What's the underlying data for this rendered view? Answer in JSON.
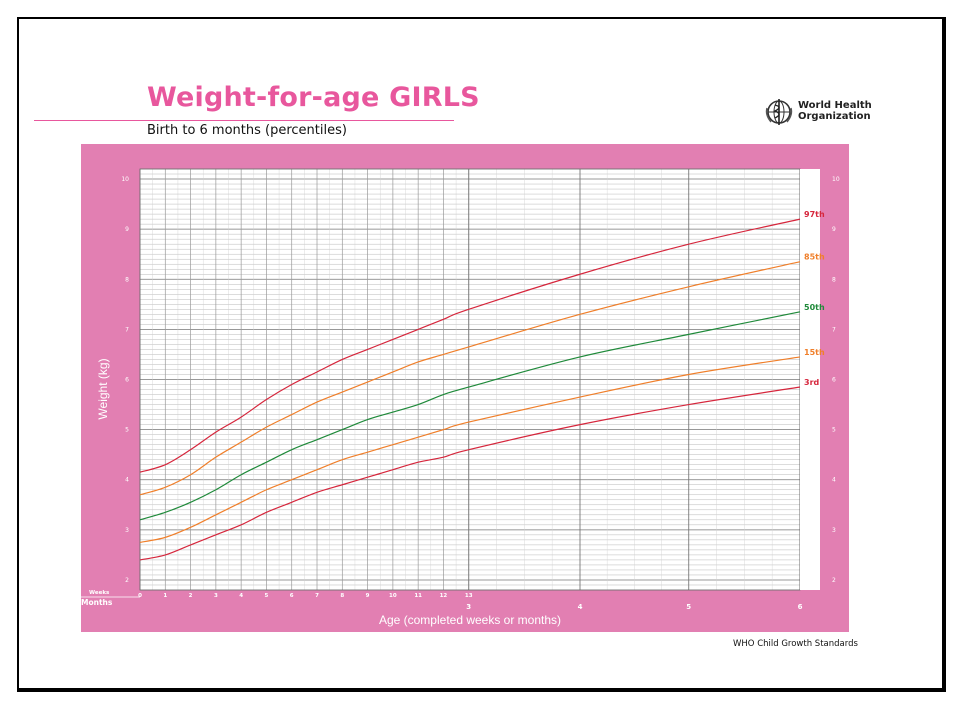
{
  "header": {
    "title": "Weight-for-age GIRLS",
    "subtitle": "Birth to 6 months (percentiles)",
    "org_line1": "World Health",
    "org_line2": "Organization",
    "footer": "WHO Child Growth Standards"
  },
  "colors": {
    "brand_pink": "#e8579d",
    "panel_pink": "#e27fb2",
    "p3": "#d6263c",
    "p15": "#f07f2a",
    "p50": "#1f8a3a",
    "p85": "#f07f2a",
    "p97": "#d6263c"
  },
  "chart_data": {
    "type": "line",
    "title": "Weight-for-age GIRLS",
    "subtitle": "Birth to 6 months (percentiles)",
    "xlabel": "Age (completed weeks or months)",
    "ylabel": "Weight (kg)",
    "ylim": [
      1.8,
      10.2
    ],
    "yticks": [
      2,
      3,
      4,
      5,
      6,
      7,
      8,
      9,
      10
    ],
    "week_ticks": [
      "0",
      "1",
      "2",
      "3",
      "4",
      "5",
      "6",
      "7",
      "8",
      "9",
      "10",
      "11",
      "12",
      "13"
    ],
    "month_ticks": [
      "3",
      "4",
      "5",
      "6"
    ],
    "week_row_label": "Weeks",
    "month_row_label": "Months",
    "grid": true,
    "x_unit": "weeks",
    "x": [
      0,
      1,
      2,
      3,
      4,
      5,
      6,
      7,
      8,
      9,
      10,
      11,
      12,
      13,
      17.4,
      21.7,
      26.1
    ],
    "series": [
      {
        "name": "3rd",
        "color": "#d6263c",
        "values": [
          2.4,
          2.5,
          2.7,
          2.9,
          3.1,
          3.35,
          3.55,
          3.75,
          3.9,
          4.05,
          4.2,
          4.35,
          4.45,
          4.6,
          5.1,
          5.5,
          5.85
        ]
      },
      {
        "name": "15th",
        "color": "#f07f2a",
        "values": [
          2.75,
          2.85,
          3.05,
          3.3,
          3.55,
          3.8,
          4.0,
          4.2,
          4.4,
          4.55,
          4.7,
          4.85,
          5.0,
          5.15,
          5.65,
          6.1,
          6.45
        ]
      },
      {
        "name": "50th",
        "color": "#1f8a3a",
        "values": [
          3.2,
          3.35,
          3.55,
          3.8,
          4.1,
          4.35,
          4.6,
          4.8,
          5.0,
          5.2,
          5.35,
          5.5,
          5.7,
          5.85,
          6.45,
          6.9,
          7.35
        ]
      },
      {
        "name": "85th",
        "color": "#f07f2a",
        "values": [
          3.7,
          3.85,
          4.1,
          4.45,
          4.75,
          5.05,
          5.3,
          5.55,
          5.75,
          5.95,
          6.15,
          6.35,
          6.5,
          6.65,
          7.3,
          7.85,
          8.35
        ]
      },
      {
        "name": "97th",
        "color": "#d6263c",
        "values": [
          4.15,
          4.3,
          4.6,
          4.95,
          5.25,
          5.6,
          5.9,
          6.15,
          6.4,
          6.6,
          6.8,
          7.0,
          7.2,
          7.4,
          8.1,
          8.7,
          9.2
        ]
      }
    ]
  }
}
